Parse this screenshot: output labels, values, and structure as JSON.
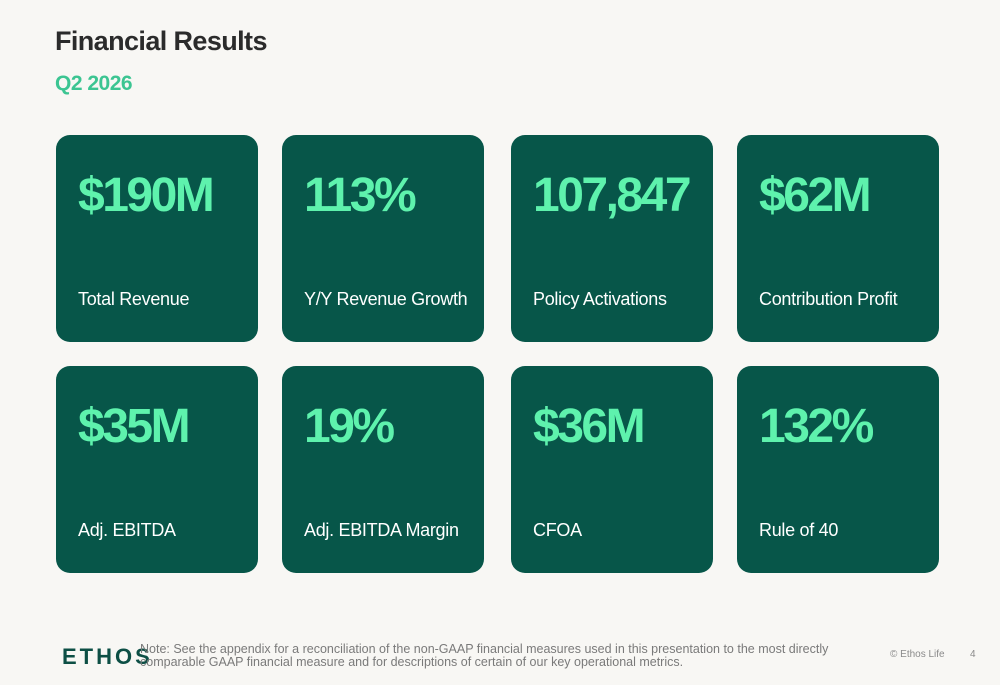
{
  "header": {
    "title": "Financial Results",
    "subtitle": "Q2 2026"
  },
  "colors": {
    "background": "#f8f7f4",
    "card": "#075649",
    "metric_value": "#5ef2ad",
    "subtitle": "#3cc592",
    "title": "#2b2b2b"
  },
  "metrics": [
    {
      "value": "$190M",
      "label": "Total Revenue"
    },
    {
      "value": "113%",
      "label": "Y/Y Revenue Growth"
    },
    {
      "value": "107,847",
      "label": "Policy Activations"
    },
    {
      "value": "$62M",
      "label": "Contribution Profit"
    },
    {
      "value": "$35M",
      "label": "Adj. EBITDA"
    },
    {
      "value": "19%",
      "label": "Adj. EBITDA Margin"
    },
    {
      "value": "$36M",
      "label": "CFOA"
    },
    {
      "value": "132%",
      "label": "Rule of 40"
    }
  ],
  "footer": {
    "logo": "ETHOS",
    "note": "Note: See the appendix for a reconciliation of the non-GAAP financial measures used in this presentation to the most directly comparable GAAP financial measure and for descriptions of certain of our key operational metrics.",
    "copyright": "© Ethos Life",
    "page_number": "4"
  }
}
